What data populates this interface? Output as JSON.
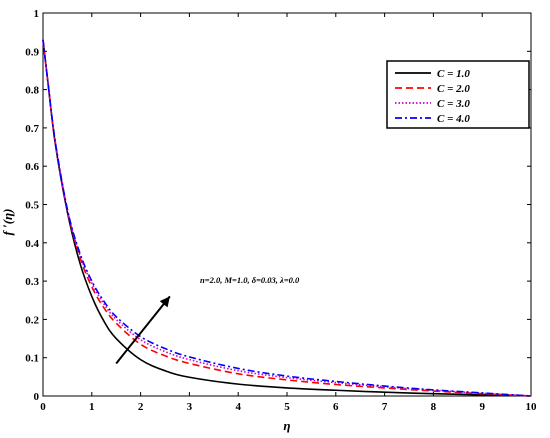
{
  "chart_data": {
    "type": "line",
    "xlabel": "η",
    "ylabel": "f ′(η)",
    "xlim": [
      0,
      10
    ],
    "ylim": [
      0,
      1
    ],
    "xticks": [
      "0",
      "1",
      "2",
      "3",
      "4",
      "5",
      "6",
      "7",
      "8",
      "9",
      "10"
    ],
    "yticks": [
      "0",
      "0.1",
      "0.2",
      "0.3",
      "0.4",
      "0.5",
      "0.6",
      "0.7",
      "0.8",
      "0.9",
      "1"
    ],
    "grid": false,
    "legend_position": "top-right",
    "annotation": "n=2.0, M=1.0, δ=0.03, λ=0.0",
    "arrow": {
      "from": [
        1.5,
        0.085
      ],
      "to": [
        2.6,
        0.26
      ]
    },
    "x": [
      0,
      0.1,
      0.25,
      0.5,
      0.75,
      1,
      1.25,
      1.5,
      2,
      2.5,
      3,
      4,
      5,
      6,
      7,
      8,
      9,
      10
    ],
    "series": [
      {
        "name": "C = 1.0",
        "color": "#000000",
        "dash": "solid",
        "values": [
          0.93,
          0.82,
          0.66,
          0.48,
          0.35,
          0.26,
          0.195,
          0.15,
          0.095,
          0.066,
          0.049,
          0.031,
          0.021,
          0.015,
          0.01,
          0.006,
          0.003,
          0.0
        ]
      },
      {
        "name": "C = 2.0",
        "color": "#ff0000",
        "dash": "dashed",
        "values": [
          0.93,
          0.82,
          0.665,
          0.485,
          0.365,
          0.285,
          0.23,
          0.19,
          0.135,
          0.105,
          0.085,
          0.058,
          0.042,
          0.03,
          0.021,
          0.013,
          0.006,
          0.0
        ]
      },
      {
        "name": "C = 3.0",
        "color": "#cc00cc",
        "dash": "dotted",
        "values": [
          0.93,
          0.82,
          0.665,
          0.485,
          0.37,
          0.295,
          0.24,
          0.2,
          0.147,
          0.116,
          0.095,
          0.066,
          0.048,
          0.035,
          0.024,
          0.015,
          0.007,
          0.0
        ]
      },
      {
        "name": "C = 4.0",
        "color": "#0000ff",
        "dash": "dashdot",
        "values": [
          0.93,
          0.82,
          0.665,
          0.487,
          0.375,
          0.3,
          0.247,
          0.207,
          0.155,
          0.124,
          0.102,
          0.072,
          0.052,
          0.038,
          0.026,
          0.016,
          0.008,
          0.0
        ]
      }
    ]
  }
}
